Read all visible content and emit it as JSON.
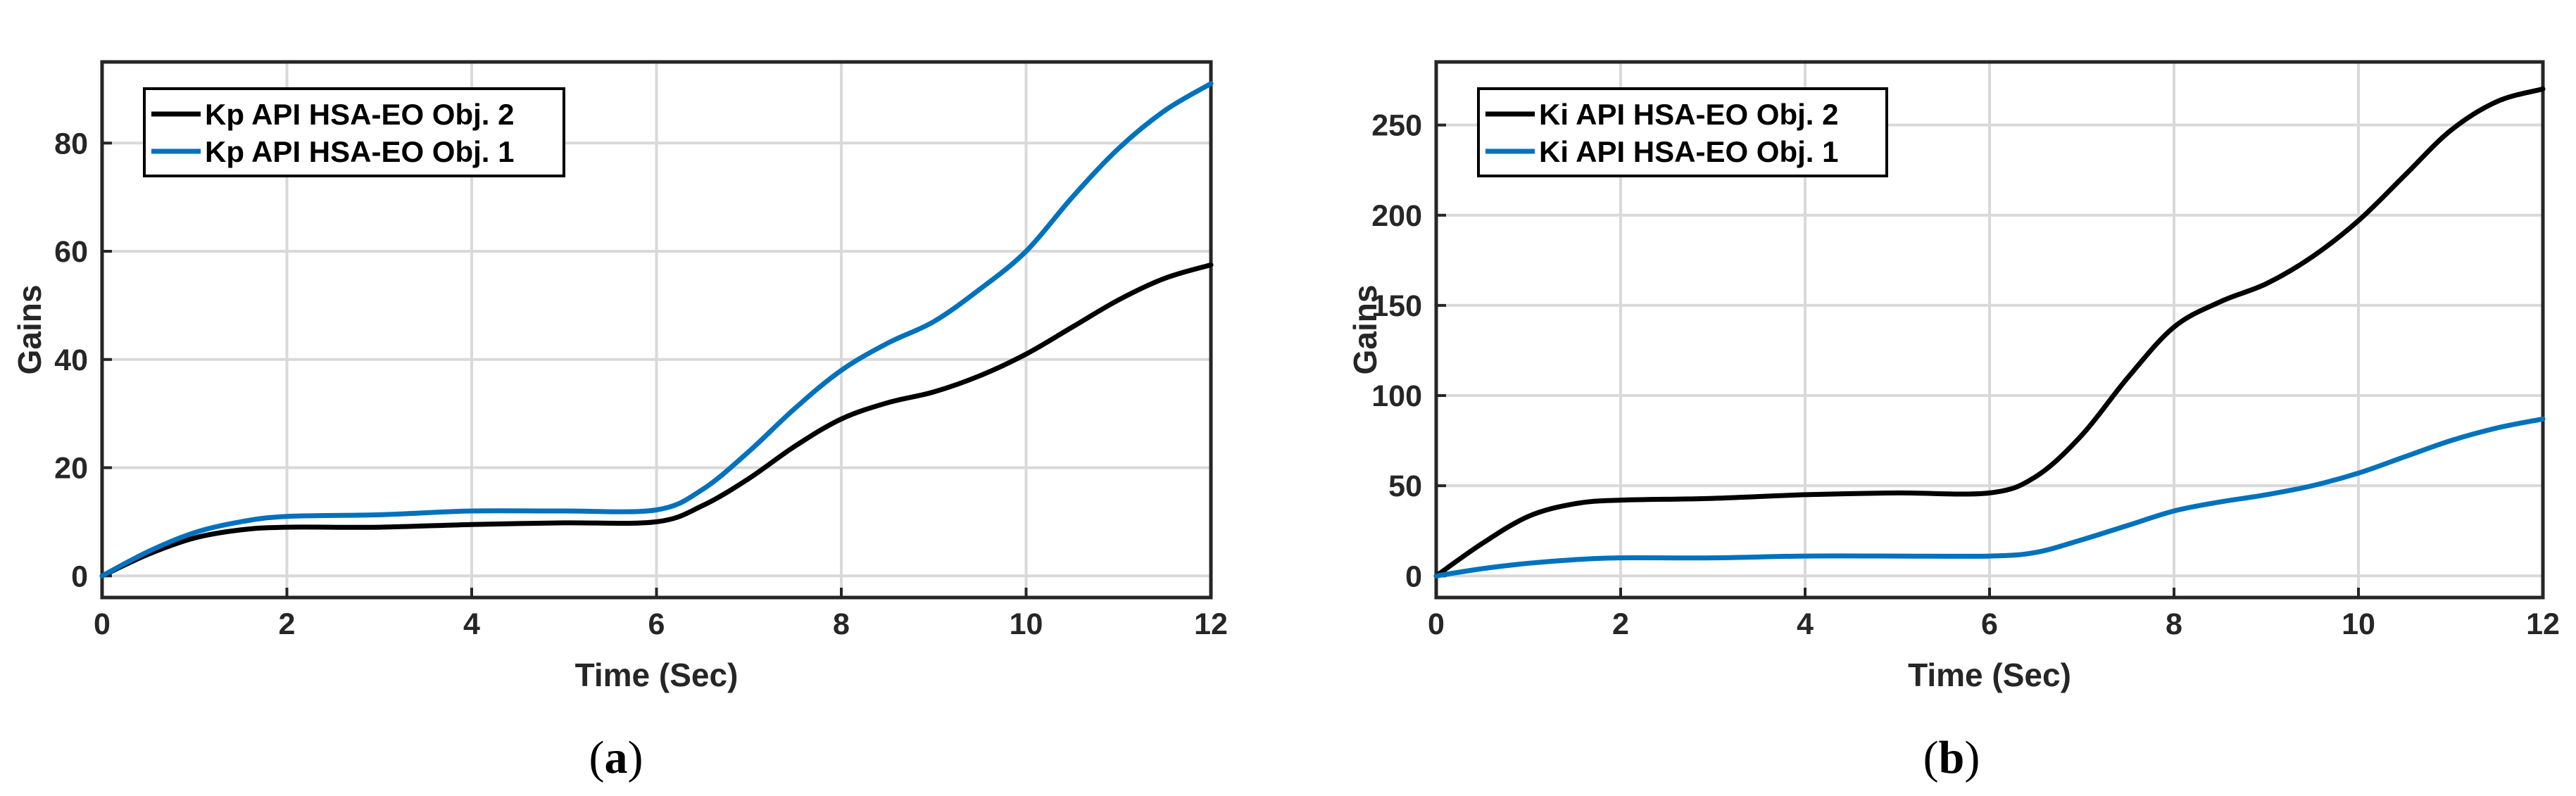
{
  "colors": {
    "black_series": "#000000",
    "blue_series": "#0072BD",
    "grid": "#d9d9d9",
    "axis": "#262626"
  },
  "chart_data": [
    {
      "type": "line",
      "caption": "(a)",
      "caption_letter": "a",
      "xlabel": "Time (Sec)",
      "ylabel": "Gains",
      "xlim": [
        0,
        12
      ],
      "ylim": [
        -4,
        95
      ],
      "xticks": [
        0,
        2,
        4,
        6,
        8,
        10,
        12
      ],
      "yticks": [
        0,
        20,
        40,
        60,
        80
      ],
      "grid": true,
      "legend_position": "top-left",
      "series": [
        {
          "name": "Kp API HSA-EO Obj. 2",
          "color": "#000000",
          "x": [
            0,
            0.5,
            1,
            1.5,
            2,
            3,
            4,
            5,
            6,
            6.5,
            7,
            7.5,
            8,
            8.5,
            9,
            9.5,
            10,
            10.5,
            11,
            11.5,
            12
          ],
          "y": [
            0,
            4,
            7,
            8.5,
            9,
            9,
            9.5,
            9.8,
            10,
            13,
            18,
            24,
            29,
            32,
            34,
            37,
            41,
            46,
            51,
            55,
            57.5
          ]
        },
        {
          "name": "Kp API HSA-EO Obj. 1",
          "color": "#0072BD",
          "x": [
            0,
            0.5,
            1,
            1.5,
            2,
            3,
            4,
            5,
            6,
            6.5,
            7,
            7.5,
            8,
            8.5,
            9,
            9.5,
            10,
            10.5,
            11,
            11.5,
            12
          ],
          "y": [
            0,
            4.5,
            8,
            10,
            11,
            11.3,
            12,
            12,
            12.2,
            16,
            23,
            31,
            38,
            43,
            47,
            53,
            60,
            70,
            79,
            86,
            91
          ]
        }
      ]
    },
    {
      "type": "line",
      "caption": "(b)",
      "caption_letter": "b",
      "xlabel": "Time (Sec)",
      "ylabel": "Gains",
      "xlim": [
        0,
        12
      ],
      "ylim": [
        -12,
        285
      ],
      "xticks": [
        0,
        2,
        4,
        6,
        8,
        10,
        12
      ],
      "yticks": [
        0,
        50,
        100,
        150,
        200,
        250
      ],
      "grid": true,
      "legend_position": "top-left",
      "series": [
        {
          "name": "Ki API HSA-EO Obj. 2",
          "color": "#000000",
          "x": [
            0,
            0.5,
            1,
            1.5,
            2,
            3,
            4,
            5,
            6,
            6.5,
            7,
            7.5,
            8,
            8.5,
            9,
            9.5,
            10,
            10.5,
            11,
            11.5,
            12
          ],
          "y": [
            0,
            18,
            33,
            40,
            42,
            43,
            45,
            46,
            46,
            55,
            78,
            110,
            138,
            152,
            162,
            177,
            197,
            222,
            247,
            263,
            270
          ]
        },
        {
          "name": "Ki API HSA-EO Obj. 1",
          "color": "#0072BD",
          "x": [
            0,
            0.5,
            1,
            1.5,
            2,
            3,
            4,
            5,
            6,
            6.5,
            7,
            7.5,
            8,
            8.5,
            9,
            9.5,
            10,
            10.5,
            11,
            11.5,
            12
          ],
          "y": [
            0,
            4,
            7,
            9,
            10,
            10,
            11,
            11,
            11,
            13,
            20,
            28,
            36,
            41,
            45,
            50,
            57,
            66,
            75,
            82,
            87
          ]
        }
      ]
    }
  ]
}
